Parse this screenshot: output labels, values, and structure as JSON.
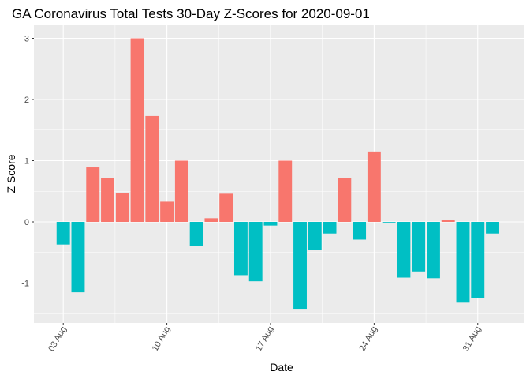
{
  "chart_data": {
    "type": "bar",
    "title": "GA Coronavirus Total Tests 30-Day Z-Scores for 2020-09-01",
    "xlabel": "Date",
    "ylabel": "Z Score",
    "x_ticks": [
      "03 Aug",
      "10 Aug",
      "17 Aug",
      "24 Aug",
      "31 Aug"
    ],
    "y_ticks": [
      -1,
      0,
      1,
      2,
      3
    ],
    "ylim": [
      -1.55,
      3.25
    ],
    "grid": true,
    "legend": "none",
    "colors": {
      "positive": "#F8766D",
      "negative": "#00BFC4",
      "panel": "#EBEBEB",
      "grid": "#FFFFFF"
    },
    "categories": [
      "2020-08-03",
      "2020-08-04",
      "2020-08-05",
      "2020-08-06",
      "2020-08-07",
      "2020-08-08",
      "2020-08-09",
      "2020-08-10",
      "2020-08-11",
      "2020-08-12",
      "2020-08-13",
      "2020-08-14",
      "2020-08-15",
      "2020-08-16",
      "2020-08-17",
      "2020-08-18",
      "2020-08-19",
      "2020-08-20",
      "2020-08-21",
      "2020-08-22",
      "2020-08-23",
      "2020-08-24",
      "2020-08-25",
      "2020-08-26",
      "2020-08-27",
      "2020-08-28",
      "2020-08-29",
      "2020-08-30",
      "2020-08-31",
      "2020-09-01"
    ],
    "values": [
      -0.37,
      -1.15,
      0.89,
      0.71,
      0.47,
      3.0,
      1.73,
      0.33,
      1.0,
      -0.4,
      0.06,
      0.46,
      -0.87,
      -0.97,
      -0.06,
      1.0,
      -1.42,
      -0.46,
      -0.19,
      0.71,
      -0.29,
      1.15,
      -0.01,
      -0.91,
      -0.81,
      -0.92,
      0.03,
      -1.32,
      -1.25,
      -0.19
    ]
  }
}
